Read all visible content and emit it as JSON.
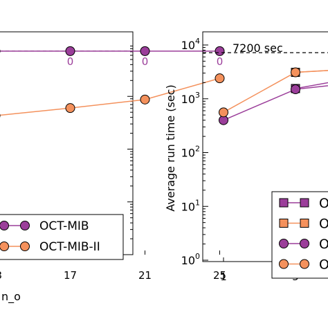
{
  "chart_data": [
    {
      "type": "line",
      "title": "",
      "xlabel": "n_o",
      "ylabel": "",
      "x_ticks": [
        "13",
        "17",
        "21",
        "25"
      ],
      "y_scale": "log",
      "ylim": [
        1,
        15000
      ],
      "threshold": {
        "value": 7200,
        "style": "dashed"
      },
      "grid": false,
      "legend_position": "bottom-right",
      "series": [
        {
          "name": "OCT-MIB",
          "color": "#9b3e9a",
          "marker": "circle",
          "x": [
            13,
            17,
            21,
            25
          ],
          "values": [
            7200,
            7200,
            7200,
            7200
          ],
          "point_labels": [
            "0",
            "0",
            "0",
            "0"
          ]
        },
        {
          "name": "OCT-MIB-II",
          "color": "#f4915c",
          "marker": "circle",
          "x": [
            13,
            17,
            21,
            25
          ],
          "values": [
            430,
            600,
            870,
            2200
          ]
        }
      ]
    },
    {
      "type": "line",
      "title": "",
      "xlabel": "",
      "ylabel": "Average run time (sec)",
      "x_ticks": [
        "1",
        "5"
      ],
      "y_scale": "log",
      "ylim": [
        1,
        15000
      ],
      "y_tick_labels": [
        "10^0",
        "10^1",
        "10^2",
        "10^3",
        "10^4"
      ],
      "threshold": {
        "value": 7200,
        "label": "7200 sec",
        "style": "dashed"
      },
      "grid": false,
      "legend_position": "bottom-right",
      "legend_labels": [
        "O",
        "O",
        "O",
        "O"
      ],
      "series": [
        {
          "color": "#9b3e9a",
          "marker": "square",
          "x": [
            5,
            9
          ],
          "values": [
            1550,
            2700
          ]
        },
        {
          "color": "#f4915c",
          "marker": "square",
          "x": [
            5,
            9
          ],
          "values": [
            3100,
            3700
          ]
        },
        {
          "color": "#9b3e9a",
          "marker": "circle",
          "x": [
            1,
            5,
            9
          ],
          "values": [
            400,
            1500,
            2100
          ]
        },
        {
          "color": "#f4915c",
          "marker": "circle",
          "x": [
            1,
            5,
            9
          ],
          "values": [
            560,
            3100,
            3700
          ]
        }
      ]
    }
  ]
}
